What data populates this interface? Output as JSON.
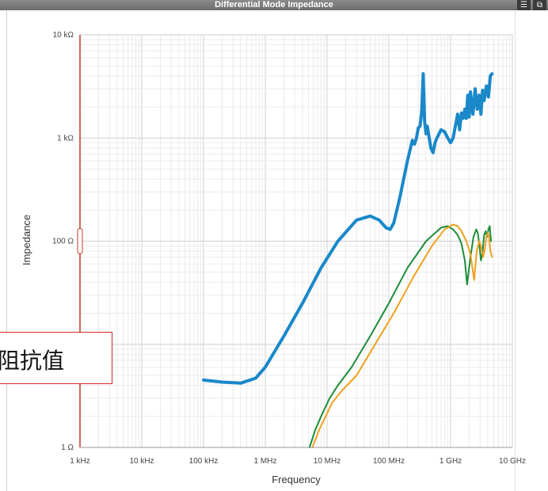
{
  "window": {
    "title": "Differential Mode Impedance",
    "menu_icon": "hamburger-menu-icon",
    "expand_icon": "expand-icon"
  },
  "callout": {
    "text": "阻抗值"
  },
  "colors": {
    "blue": "#1a88c9",
    "green": "#1e8c3a",
    "orange": "#f0a020",
    "red_axis": "#c0392b"
  },
  "chart_data": {
    "type": "line",
    "xlabel": "Frequency",
    "ylabel": "Impedance",
    "xscale": "log",
    "yscale": "log",
    "xlim": [
      1000,
      10000000000
    ],
    "ylim": [
      1,
      10000
    ],
    "grid": true,
    "x_ticks": [
      {
        "value": 1000,
        "label": "1 kHz"
      },
      {
        "value": 10000,
        "label": "10 kHz"
      },
      {
        "value": 100000,
        "label": "100 kHz"
      },
      {
        "value": 1000000,
        "label": "1 MHz"
      },
      {
        "value": 10000000,
        "label": "10 MHz"
      },
      {
        "value": 100000000,
        "label": "100 MHz"
      },
      {
        "value": 1000000000,
        "label": "1 GHz"
      },
      {
        "value": 10000000000,
        "label": "10 GHz"
      }
    ],
    "y_ticks": [
      {
        "value": 1,
        "label": "1 Ω"
      },
      {
        "value": 100,
        "label": "100 Ω"
      },
      {
        "value": 1000,
        "label": "1 kΩ"
      },
      {
        "value": 10000,
        "label": "10 kΩ"
      }
    ],
    "series": [
      {
        "color": "#1a88c9",
        "width": 4,
        "x": [
          100000,
          200000,
          400000,
          700000,
          1000000,
          2000000,
          4000000,
          8000000,
          15000000,
          30000000,
          50000000,
          70000000,
          90000000,
          105000000,
          120000000,
          150000000,
          200000000,
          240000000,
          260000000,
          280000000,
          300000000,
          320000000,
          340000000,
          360000000,
          380000000,
          400000000,
          420000000,
          450000000,
          480000000,
          520000000,
          560000000,
          600000000,
          700000000,
          800000000,
          900000000,
          1000000000,
          1100000000,
          1300000000,
          1400000000,
          1500000000,
          1600000000,
          1700000000,
          1800000000,
          1900000000,
          2000000000,
          2100000000,
          2300000000,
          2500000000,
          2700000000,
          2900000000,
          3100000000,
          3300000000,
          3500000000,
          3800000000,
          4100000000,
          4400000000,
          4700000000
        ],
        "y": [
          4.5,
          4.3,
          4.2,
          4.7,
          6,
          12,
          25,
          55,
          100,
          160,
          175,
          160,
          135,
          130,
          150,
          260,
          600,
          950,
          870,
          1000,
          1250,
          1300,
          1800,
          4200,
          1450,
          1100,
          1300,
          1000,
          800,
          720,
          900,
          1000,
          1200,
          1150,
          1000,
          900,
          1000,
          1700,
          1200,
          1750,
          1550,
          1900,
          1550,
          2600,
          1600,
          2800,
          1700,
          3000,
          1900,
          2600,
          1700,
          2900,
          2300,
          3200,
          2500,
          4000,
          4200
        ]
      },
      {
        "color": "#1e8c3a",
        "width": 2,
        "x": [
          5200000,
          6500000,
          8000000,
          11000000,
          15000000,
          25000000,
          50000000,
          100000000,
          200000000,
          400000000,
          700000000,
          900000000,
          1100000000,
          1300000000,
          1500000000,
          1700000000,
          1850000000,
          2100000000,
          2350000000,
          2600000000,
          2750000000,
          2900000000,
          3100000000,
          3300000000,
          3500000000,
          3700000000,
          3900000000,
          4100000000,
          4300000000,
          4500000000
        ],
        "y": [
          1,
          1.5,
          2,
          3,
          4,
          6,
          12,
          25,
          55,
          100,
          135,
          140,
          130,
          115,
          95,
          65,
          38,
          70,
          110,
          130,
          120,
          95,
          65,
          80,
          115,
          125,
          110,
          130,
          140,
          100
        ]
      },
      {
        "color": "#f0a020",
        "width": 2,
        "x": [
          5800000,
          7500000,
          9500000,
          12000000,
          17000000,
          30000000,
          60000000,
          120000000,
          250000000,
          500000000,
          800000000,
          1100000000,
          1300000000,
          1500000000,
          1800000000,
          2100000000,
          2400000000,
          2650000000,
          2900000000,
          3100000000,
          3350000000,
          3600000000,
          3800000000,
          4000000000,
          4200000000,
          4400000000,
          4700000000
        ],
        "y": [
          1,
          1.5,
          2,
          2.7,
          3.5,
          5,
          10,
          20,
          45,
          90,
          130,
          145,
          140,
          125,
          100,
          75,
          42,
          80,
          100,
          90,
          70,
          85,
          110,
          120,
          110,
          80,
          70
        ]
      }
    ]
  }
}
